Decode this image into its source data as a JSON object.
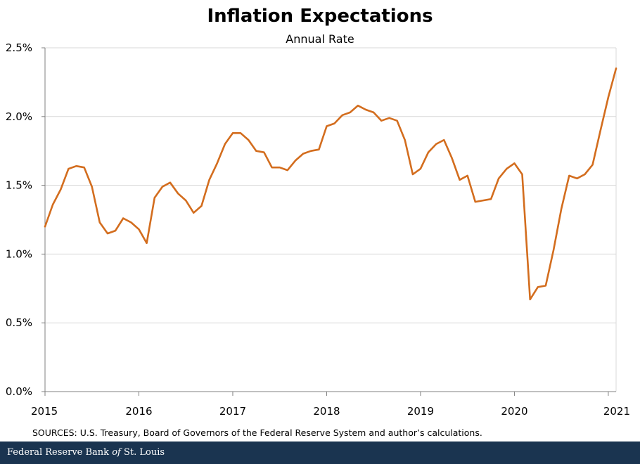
{
  "colors": {
    "line": "#D36D1E",
    "grid": "#d9d9d9",
    "axis": "#808080",
    "footer_bg": "#1a3450"
  },
  "footer": {
    "part1": "Federal Reserve Bank ",
    "part2": "of",
    "part3": " St. Louis"
  },
  "chart_data": {
    "type": "line",
    "title": "Inflation Expectations",
    "subtitle": "Annual Rate",
    "source": "SOURCES: U.S. Treasury, Board of Governors of the Federal Reserve System and author’s calculations.",
    "x_ticks": [
      "2015",
      "2016",
      "2017",
      "2018",
      "2019",
      "2020",
      "2021"
    ],
    "x_tick_values": [
      2015,
      2016,
      2017,
      2018,
      2019,
      2020,
      2021
    ],
    "xlim": [
      2015,
      2021.083
    ],
    "y_ticks": [
      "0.0%",
      "0.5%",
      "1.0%",
      "1.5%",
      "2.0%",
      "2.5%"
    ],
    "y_tick_values": [
      0,
      0.5,
      1.0,
      1.5,
      2.0,
      2.5
    ],
    "ylim": [
      0,
      2.5
    ],
    "grid": true,
    "series": [
      {
        "x": [
          2015.0,
          2015.083,
          2015.167,
          2015.25,
          2015.333,
          2015.417,
          2015.5,
          2015.583,
          2015.667,
          2015.75,
          2015.833,
          2015.917,
          2016.0,
          2016.083,
          2016.167,
          2016.25,
          2016.333,
          2016.417,
          2016.5,
          2016.583,
          2016.667,
          2016.75,
          2016.833,
          2016.917,
          2017.0,
          2017.083,
          2017.167,
          2017.25,
          2017.333,
          2017.417,
          2017.5,
          2017.583,
          2017.667,
          2017.75,
          2017.833,
          2017.917,
          2018.0,
          2018.083,
          2018.167,
          2018.25,
          2018.333,
          2018.417,
          2018.5,
          2018.583,
          2018.667,
          2018.75,
          2018.833,
          2018.917,
          2019.0,
          2019.083,
          2019.167,
          2019.25,
          2019.333,
          2019.417,
          2019.5,
          2019.583,
          2019.667,
          2019.75,
          2019.833,
          2019.917,
          2020.0,
          2020.083,
          2020.167,
          2020.25,
          2020.333,
          2020.417,
          2020.5,
          2020.583,
          2020.667,
          2020.75,
          2020.833,
          2020.917,
          2021.0,
          2021.083
        ],
        "values": [
          1.2,
          1.36,
          1.47,
          1.62,
          1.64,
          1.63,
          1.49,
          1.23,
          1.15,
          1.17,
          1.26,
          1.23,
          1.18,
          1.08,
          1.41,
          1.49,
          1.52,
          1.44,
          1.39,
          1.3,
          1.35,
          1.54,
          1.66,
          1.8,
          1.88,
          1.88,
          1.83,
          1.75,
          1.74,
          1.63,
          1.63,
          1.61,
          1.68,
          1.73,
          1.75,
          1.76,
          1.93,
          1.95,
          2.01,
          2.03,
          2.08,
          2.05,
          2.03,
          1.97,
          1.99,
          1.97,
          1.83,
          1.58,
          1.62,
          1.74,
          1.8,
          1.83,
          1.7,
          1.54,
          1.57,
          1.38,
          1.39,
          1.4,
          1.55,
          1.62,
          1.66,
          1.58,
          0.67,
          0.76,
          0.77,
          1.03,
          1.33,
          1.57,
          1.55,
          1.58,
          1.65,
          1.9,
          2.14,
          2.35
        ]
      }
    ]
  }
}
